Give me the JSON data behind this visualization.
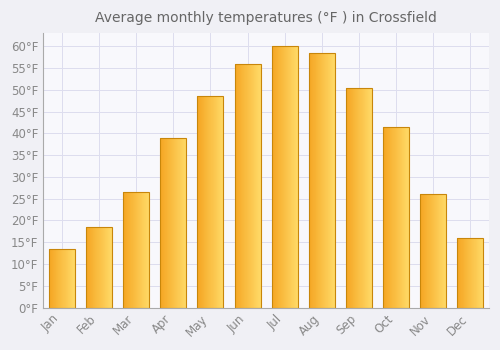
{
  "title": "Average monthly temperatures (°F ) in Crossfield",
  "months": [
    "Jan",
    "Feb",
    "Mar",
    "Apr",
    "May",
    "Jun",
    "Jul",
    "Aug",
    "Sep",
    "Oct",
    "Nov",
    "Dec"
  ],
  "values": [
    13.5,
    18.5,
    26.5,
    39.0,
    48.5,
    56.0,
    60.0,
    58.5,
    50.5,
    41.5,
    26.0,
    16.0
  ],
  "bar_color_left": "#F5A623",
  "bar_color_right": "#FFD966",
  "bar_border_color": "#C8860A",
  "background_color": "#F0F0F5",
  "plot_bg_color": "#F8F8FC",
  "grid_color": "#DDDDEE",
  "text_color": "#888888",
  "title_color": "#666666",
  "ylim": [
    0,
    63
  ],
  "yticks": [
    0,
    5,
    10,
    15,
    20,
    25,
    30,
    35,
    40,
    45,
    50,
    55,
    60
  ],
  "title_fontsize": 10,
  "tick_fontsize": 8.5,
  "bar_width": 0.7
}
